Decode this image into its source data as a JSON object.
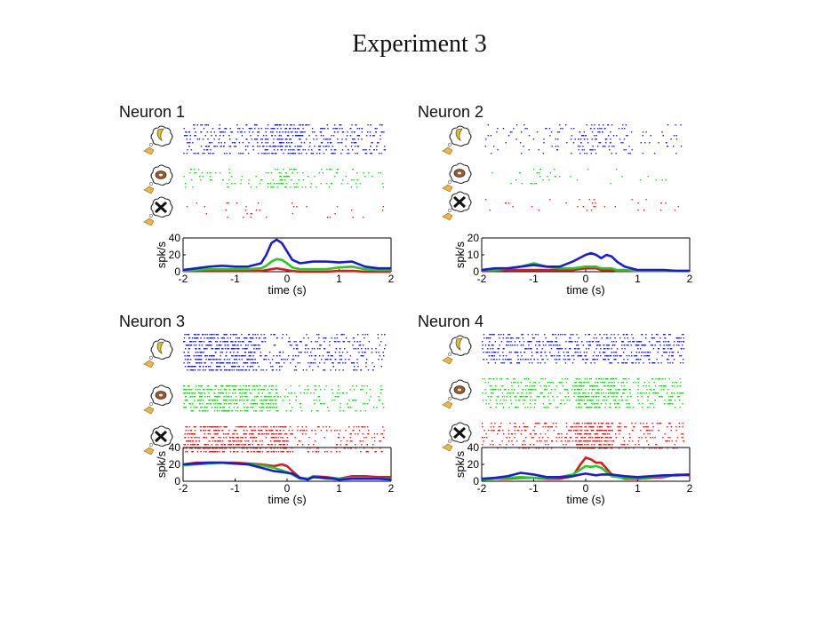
{
  "page": {
    "title": "Experiment 3"
  },
  "colors": {
    "banana": "#1a1adb",
    "donut": "#22cc22",
    "none": "#dd1a1a"
  },
  "icons": [
    "banana-thought-icon",
    "donut-thought-icon",
    "crossed-out-thought-icon"
  ],
  "chart_data": [
    {
      "type": "line",
      "title": "Neuron 1",
      "xlabel": "time (s)",
      "ylabel": "spk/s",
      "xlim": [
        -2,
        2
      ],
      "ylim": [
        0,
        40
      ],
      "xticks": [
        "-2",
        "-1",
        "0",
        "1",
        "2"
      ],
      "yticks": [
        "0",
        "20",
        "40"
      ],
      "x": [
        -2,
        -1.75,
        -1.5,
        -1.25,
        -1,
        -0.75,
        -0.5,
        -0.4,
        -0.3,
        -0.2,
        -0.1,
        0,
        0.1,
        0.25,
        0.5,
        0.75,
        1,
        1.25,
        1.5,
        1.75,
        2
      ],
      "series": [
        {
          "color": "blue",
          "values": [
            2,
            4,
            6,
            7,
            6,
            6,
            10,
            20,
            34,
            38,
            34,
            24,
            14,
            10,
            12,
            12,
            11,
            12,
            6,
            4,
            4
          ]
        },
        {
          "color": "green",
          "values": [
            1,
            2,
            3,
            3,
            3,
            3,
            4,
            7,
            12,
            15,
            14,
            10,
            5,
            3,
            3,
            3,
            5,
            6,
            3,
            2,
            2
          ]
        },
        {
          "color": "red",
          "values": [
            1,
            1,
            1,
            1,
            1,
            1,
            1,
            2,
            3,
            4,
            3,
            2,
            1,
            0,
            0,
            0,
            1,
            1,
            0,
            0,
            0
          ]
        }
      ],
      "raster": [
        {
          "color": "blue",
          "rows": 9,
          "density": 52,
          "burst": [
            -0.3,
            0.3,
            90
          ]
        },
        {
          "color": "green",
          "rows": 6,
          "density": 18,
          "burst": [
            -0.4,
            0.2,
            40
          ]
        },
        {
          "color": "red",
          "rows": 5,
          "density": 6,
          "burst": [
            -1.0,
            -0.7,
            6
          ]
        }
      ]
    },
    {
      "type": "line",
      "title": "Neuron 2",
      "xlabel": "time (s)",
      "ylabel": "spk/s",
      "xlim": [
        -2,
        2
      ],
      "ylim": [
        0,
        20
      ],
      "xticks": [
        "-2",
        "-1",
        "0",
        "1",
        "2"
      ],
      "yticks": [
        "0",
        "10",
        "20"
      ],
      "x": [
        -2,
        -1.75,
        -1.5,
        -1.25,
        -1,
        -0.75,
        -0.5,
        -0.25,
        0,
        0.1,
        0.2,
        0.3,
        0.4,
        0.5,
        0.6,
        0.75,
        1,
        1.25,
        1.5,
        1.75,
        2
      ],
      "series": [
        {
          "color": "blue",
          "values": [
            1,
            2,
            2,
            3,
            4,
            3,
            3,
            6,
            10,
            11,
            10,
            8,
            10,
            9,
            6,
            3,
            1,
            1,
            1,
            0.5,
            0.5
          ]
        },
        {
          "color": "green",
          "values": [
            1,
            1,
            2,
            3,
            5,
            3,
            2,
            2,
            3,
            3,
            3,
            2,
            2,
            2,
            1,
            1,
            0.5,
            0.5,
            0.5,
            0.5,
            0.5
          ]
        },
        {
          "color": "red",
          "values": [
            0.5,
            0.5,
            1,
            1,
            1,
            1,
            1,
            1,
            2,
            2,
            2,
            1,
            1,
            1,
            0.5,
            0.5,
            0.5,
            0.5,
            0.5,
            0.5,
            0.5
          ]
        }
      ],
      "raster": [
        {
          "color": "blue",
          "rows": 9,
          "density": 14,
          "burst": [
            -0.2,
            0.5,
            55
          ]
        },
        {
          "color": "green",
          "rows": 5,
          "density": 5,
          "burst": [
            -1.1,
            -0.7,
            8
          ]
        },
        {
          "color": "red",
          "rows": 4,
          "density": 6,
          "burst": [
            -0.3,
            0.2,
            8
          ]
        }
      ]
    },
    {
      "type": "line",
      "title": "Neuron 3",
      "xlabel": "time (s)",
      "ylabel": "spk/s",
      "xlim": [
        -2,
        2
      ],
      "ylim": [
        0,
        40
      ],
      "xticks": [
        "-2",
        "-1",
        "0",
        "1",
        "2"
      ],
      "yticks": [
        "0",
        "20",
        "40"
      ],
      "x": [
        -2,
        -1.75,
        -1.5,
        -1.25,
        -1,
        -0.75,
        -0.5,
        -0.25,
        -0.1,
        0,
        0.1,
        0.25,
        0.4,
        0.5,
        0.75,
        1,
        1.25,
        1.5,
        1.75,
        2
      ],
      "series": [
        {
          "color": "blue",
          "values": [
            20,
            21,
            22,
            22,
            21,
            20,
            16,
            12,
            11,
            10,
            9,
            4,
            2,
            5,
            4,
            2,
            3,
            3,
            3,
            2
          ]
        },
        {
          "color": "green",
          "values": [
            19,
            20,
            21,
            22,
            21,
            20,
            19,
            16,
            13,
            11,
            8,
            3,
            3,
            6,
            3,
            3,
            4,
            4,
            3,
            3
          ]
        },
        {
          "color": "red",
          "values": [
            20,
            22,
            22,
            22,
            22,
            21,
            20,
            18,
            20,
            18,
            12,
            4,
            3,
            6,
            5,
            3,
            6,
            6,
            5,
            5
          ]
        }
      ],
      "raster": [
        {
          "color": "blue",
          "rows": 11,
          "density": 40,
          "burst": [
            -2.0,
            -0.6,
            320
          ]
        },
        {
          "color": "green",
          "rows": 8,
          "density": 30,
          "burst": [
            -2.0,
            -0.2,
            330
          ]
        },
        {
          "color": "red",
          "rows": 8,
          "density": 40,
          "burst": [
            -2.0,
            0.0,
            360
          ]
        }
      ]
    },
    {
      "type": "line",
      "title": "Neuron 4",
      "xlabel": "time (s)",
      "ylabel": "spk/s",
      "xlim": [
        -2,
        2
      ],
      "ylim": [
        0,
        40
      ],
      "xticks": [
        "-2",
        "-1",
        "0",
        "1",
        "2"
      ],
      "yticks": [
        "0",
        "20",
        "40"
      ],
      "x": [
        -2,
        -1.75,
        -1.5,
        -1.25,
        -1,
        -0.75,
        -0.5,
        -0.25,
        -0.1,
        0,
        0.1,
        0.2,
        0.3,
        0.5,
        0.75,
        1,
        1.25,
        1.5,
        1.75,
        2
      ],
      "series": [
        {
          "color": "blue",
          "values": [
            3,
            4,
            6,
            10,
            8,
            5,
            5,
            6,
            8,
            9,
            8,
            7,
            8,
            8,
            6,
            5,
            6,
            7,
            7,
            8
          ]
        },
        {
          "color": "green",
          "values": [
            2,
            3,
            4,
            5,
            4,
            4,
            5,
            8,
            14,
            18,
            17,
            18,
            16,
            6,
            4,
            4,
            5,
            6,
            8,
            8
          ]
        },
        {
          "color": "red",
          "values": [
            2,
            3,
            3,
            4,
            4,
            3,
            3,
            6,
            20,
            28,
            26,
            22,
            22,
            8,
            3,
            3,
            4,
            5,
            8,
            7
          ]
        }
      ],
      "raster": [
        {
          "color": "blue",
          "rows": 9,
          "density": 65,
          "burst": [
            0.0,
            0.5,
            20
          ]
        },
        {
          "color": "green",
          "rows": 9,
          "density": 55,
          "burst": [
            -0.2,
            0.6,
            140
          ]
        },
        {
          "color": "red",
          "rows": 8,
          "density": 45,
          "burst": [
            -0.2,
            0.5,
            200
          ]
        }
      ]
    }
  ]
}
